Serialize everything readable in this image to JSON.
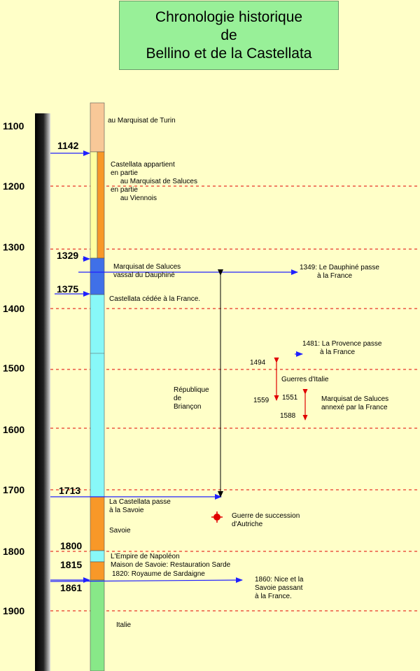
{
  "title": [
    "Chronologie historique",
    "de",
    "Bellino et de la Castellata"
  ],
  "axis_ticks": [
    "1100",
    "1200",
    "1300",
    "1400",
    "1500",
    "1600",
    "1700",
    "1800",
    "1900"
  ],
  "year_markers": [
    "1142",
    "1329",
    "1375",
    "1713",
    "1800",
    "1815",
    "1861"
  ],
  "periods": {
    "turin": "au Marquisat de Turin",
    "partagee": "Castellata appartient\nen partie\n     au Marquisat de Saluces\nen partie\n     au Viennois",
    "saluces": "Marquisat de Saluces\nvassal du Dauphiné",
    "cedee": "Castellata cédée à la France.",
    "savoie_passe": "La Castellata passe\nà la Savoie",
    "savoie": "Savoie",
    "empire": "L'Empire de Napoléon",
    "restauration": "Maison de Savoie: Restauration Sarde",
    "sardaigne": "1820: Royaume de Sardaigne",
    "italie": "Italie"
  },
  "events": {
    "dauphine": "1349: Le Dauphiné passe\n         à la France",
    "provence": "1481: La Provence passe\n         à la France",
    "y1494": "1494",
    "guerres": "Guerres d'Italie",
    "y1559": "1559",
    "y1551": "1551",
    "y1588": "1588",
    "saluces_annexe": "Marquisat de Saluces\nannexé par la France",
    "briancon": "République\nde\nBriançon",
    "succession": "Guerre de succession\nd'Autriche",
    "nice": "1860: Nice et la\nSavoie passant\nà la France."
  },
  "colors": {
    "background": "#ffffc8",
    "title_box": "#98f098",
    "peach": "#f8c898",
    "pale_yellow": "#ffffa0",
    "orange": "#f89828",
    "blue": "#4070e8",
    "cyan": "#88f8f8",
    "green": "#88e888",
    "arrow_blue": "#2020ff",
    "arrow_red": "#e00000",
    "gridline": "#e00000"
  }
}
